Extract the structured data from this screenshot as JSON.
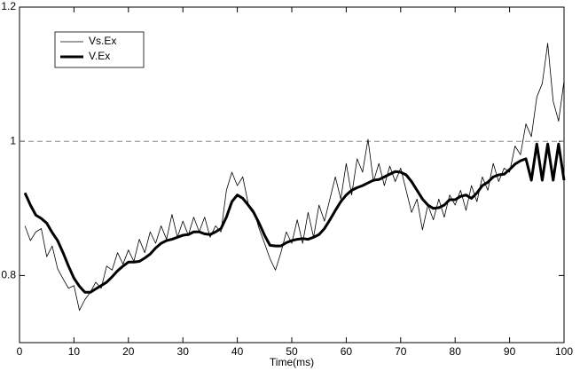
{
  "chart_data": {
    "type": "line",
    "xlabel": "Time(ms)",
    "x": [
      1,
      2,
      3,
      4,
      5,
      6,
      7,
      8,
      9,
      10,
      11,
      12,
      13,
      14,
      15,
      16,
      17,
      18,
      19,
      20,
      21,
      22,
      23,
      24,
      25,
      26,
      27,
      28,
      29,
      30,
      31,
      32,
      33,
      34,
      35,
      36,
      37,
      38,
      39,
      40,
      41,
      42,
      43,
      44,
      45,
      46,
      47,
      48,
      49,
      50,
      51,
      52,
      53,
      54,
      55,
      56,
      57,
      58,
      59,
      60,
      61,
      62,
      63,
      64,
      65,
      66,
      67,
      68,
      69,
      70,
      71,
      72,
      73,
      74,
      75,
      76,
      77,
      78,
      79,
      80,
      81,
      82,
      83,
      84,
      85,
      86,
      87,
      88,
      89,
      90,
      91,
      92,
      93,
      94,
      95,
      96,
      97,
      98,
      99,
      100
    ],
    "series": [
      {
        "name": "Vs.Ex",
        "color": "#000000",
        "width": 0.8,
        "values": [
          0.874,
          0.852,
          0.865,
          0.87,
          0.828,
          0.844,
          0.81,
          0.795,
          0.781,
          0.785,
          0.748,
          0.764,
          0.775,
          0.79,
          0.781,
          0.814,
          0.808,
          0.834,
          0.817,
          0.838,
          0.821,
          0.854,
          0.834,
          0.865,
          0.848,
          0.874,
          0.854,
          0.891,
          0.857,
          0.881,
          0.86,
          0.887,
          0.865,
          0.887,
          0.857,
          0.874,
          0.865,
          0.927,
          0.954,
          0.934,
          0.947,
          0.907,
          0.897,
          0.87,
          0.848,
          0.825,
          0.808,
          0.834,
          0.865,
          0.848,
          0.883,
          0.848,
          0.894,
          0.857,
          0.905,
          0.881,
          0.914,
          0.947,
          0.914,
          0.967,
          0.92,
          0.974,
          0.954,
          1.003,
          0.94,
          0.967,
          0.934,
          0.963,
          0.94,
          0.96,
          0.927,
          0.894,
          0.914,
          0.868,
          0.905,
          0.883,
          0.914,
          0.887,
          0.92,
          0.905,
          0.927,
          0.897,
          0.934,
          0.91,
          0.947,
          0.927,
          0.967,
          0.94,
          0.96,
          0.954,
          0.993,
          0.98,
          1.026,
          1.007,
          1.066,
          1.086,
          1.146,
          1.06,
          1.03,
          1.09
        ]
      },
      {
        "name": "V.Ex",
        "color": "#000000",
        "width": 3,
        "values": [
          0.923,
          0.905,
          0.89,
          0.885,
          0.878,
          0.864,
          0.852,
          0.834,
          0.814,
          0.796,
          0.784,
          0.775,
          0.775,
          0.78,
          0.785,
          0.79,
          0.798,
          0.807,
          0.814,
          0.82,
          0.82,
          0.821,
          0.826,
          0.832,
          0.841,
          0.848,
          0.852,
          0.854,
          0.857,
          0.86,
          0.861,
          0.865,
          0.865,
          0.862,
          0.861,
          0.865,
          0.87,
          0.887,
          0.91,
          0.92,
          0.915,
          0.905,
          0.894,
          0.878,
          0.86,
          0.845,
          0.844,
          0.844,
          0.849,
          0.852,
          0.854,
          0.855,
          0.854,
          0.857,
          0.861,
          0.87,
          0.883,
          0.897,
          0.91,
          0.92,
          0.927,
          0.931,
          0.934,
          0.938,
          0.942,
          0.943,
          0.947,
          0.951,
          0.955,
          0.954,
          0.95,
          0.94,
          0.927,
          0.914,
          0.905,
          0.9,
          0.901,
          0.905,
          0.913,
          0.913,
          0.918,
          0.92,
          0.915,
          0.923,
          0.934,
          0.939,
          0.947,
          0.95,
          0.951,
          0.958,
          0.966,
          0.971,
          0.974,
          0.942,
          0.996,
          0.942,
          0.996,
          0.942,
          0.996,
          0.942
        ]
      }
    ],
    "hline": 1,
    "xlim": [
      0,
      100
    ],
    "xticks": [
      0,
      10,
      20,
      30,
      40,
      50,
      60,
      70,
      80,
      90,
      100
    ],
    "ylim": [
      0.7,
      1.2
    ],
    "yticks": [
      0.8,
      1,
      1.2
    ],
    "legend": "upper left"
  }
}
